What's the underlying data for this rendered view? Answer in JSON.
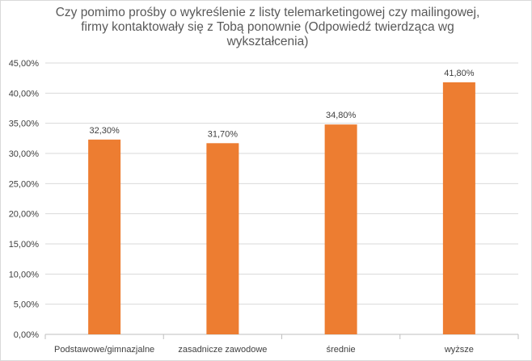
{
  "chart_data": {
    "type": "bar",
    "title_lines": [
      "Czy pomimo prośby o wykreślenie  z listy telemarketingowej  czy mailingowej,",
      "firmy kontaktowały  się z Tobą ponownie  (Odpowiedź twierdząca wg",
      "wykształcenia)"
    ],
    "categories": [
      "Podstawowe/gimnazjalne",
      "zasadnicze zawodowe",
      "średnie",
      "wyższe"
    ],
    "values": [
      32.3,
      31.7,
      34.8,
      41.8
    ],
    "data_labels": [
      "32,30%",
      "31,70%",
      "34,80%",
      "41,80%"
    ],
    "ylim": [
      0,
      45
    ],
    "yticks": [
      0,
      5,
      10,
      15,
      20,
      25,
      30,
      35,
      40,
      45
    ],
    "ytick_labels": [
      "0,00%",
      "5,00%",
      "10,00%",
      "15,00%",
      "20,00%",
      "25,00%",
      "30,00%",
      "35,00%",
      "40,00%",
      "45,00%"
    ],
    "xlabel": "",
    "ylabel": "",
    "grid": true,
    "legend": false,
    "colors": {
      "bar": "#ED7D31",
      "grid": "#d9d9d9",
      "axis": "#bfbfbf"
    }
  }
}
